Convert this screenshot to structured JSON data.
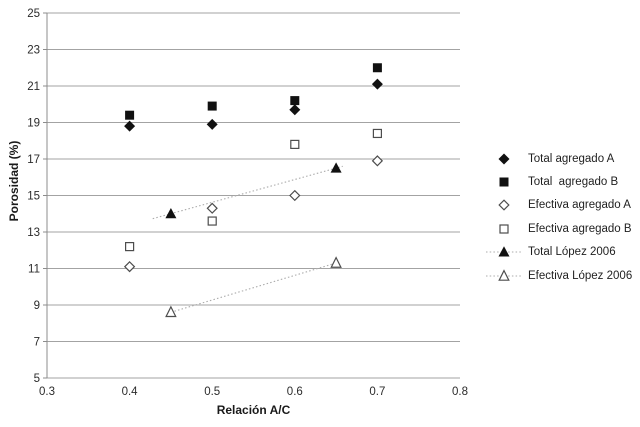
{
  "chart_data": {
    "type": "scatter",
    "title": "",
    "xlabel": "Relación A/C",
    "ylabel": "Porosidad (%)",
    "xlim": [
      0.3,
      0.8
    ],
    "ylim": [
      5,
      25
    ],
    "xticks": [
      "0.3",
      "0.4",
      "0.5",
      "0.6",
      "0.7",
      "0.8"
    ],
    "yticks": [
      "5",
      "7",
      "9",
      "11",
      "13",
      "15",
      "17",
      "19",
      "21",
      "23",
      "25"
    ],
    "grid": "horizontal",
    "legend_position": "right",
    "colors": {
      "marker_fill": "#111111",
      "open_marker_stroke": "#4d4d4d",
      "gridline": "#a3a3a3",
      "axis_line": "#8c8c8c",
      "trendline": "#ababab",
      "text": "#2b2b2b"
    },
    "series": [
      {
        "name": "Total agregado A",
        "marker": "diamond-filled",
        "line": "none",
        "points": [
          [
            0.4,
            18.8
          ],
          [
            0.5,
            18.9
          ],
          [
            0.6,
            19.7
          ],
          [
            0.7,
            21.1
          ]
        ]
      },
      {
        "name": "Total  agregado B",
        "marker": "square-filled",
        "line": "none",
        "points": [
          [
            0.4,
            19.4
          ],
          [
            0.5,
            19.9
          ],
          [
            0.6,
            20.2
          ],
          [
            0.7,
            22.0
          ]
        ]
      },
      {
        "name": "Efectiva agregado A",
        "marker": "diamond-open",
        "line": "none",
        "points": [
          [
            0.4,
            11.1
          ],
          [
            0.5,
            14.3
          ],
          [
            0.6,
            15.0
          ],
          [
            0.7,
            16.9
          ]
        ]
      },
      {
        "name": "Efectiva agregado B",
        "marker": "square-open",
        "line": "none",
        "points": [
          [
            0.4,
            12.2
          ],
          [
            0.5,
            13.6
          ],
          [
            0.6,
            17.8
          ],
          [
            0.7,
            18.4
          ]
        ]
      },
      {
        "name": "Total López 2006",
        "marker": "triangle-filled",
        "line": "dotted",
        "points": [
          [
            0.45,
            14.0
          ],
          [
            0.65,
            16.5
          ]
        ],
        "trend": {
          "x1": 0.428,
          "y1": 13.73,
          "x2": 0.658,
          "y2": 16.6
        }
      },
      {
        "name": "Efectiva López 2006",
        "marker": "triangle-open",
        "line": "dotted",
        "points": [
          [
            0.45,
            8.6
          ],
          [
            0.65,
            11.3
          ]
        ],
        "trend": {
          "x1": 0.45,
          "y1": 8.6,
          "x2": 0.65,
          "y2": 11.3
        }
      }
    ]
  }
}
